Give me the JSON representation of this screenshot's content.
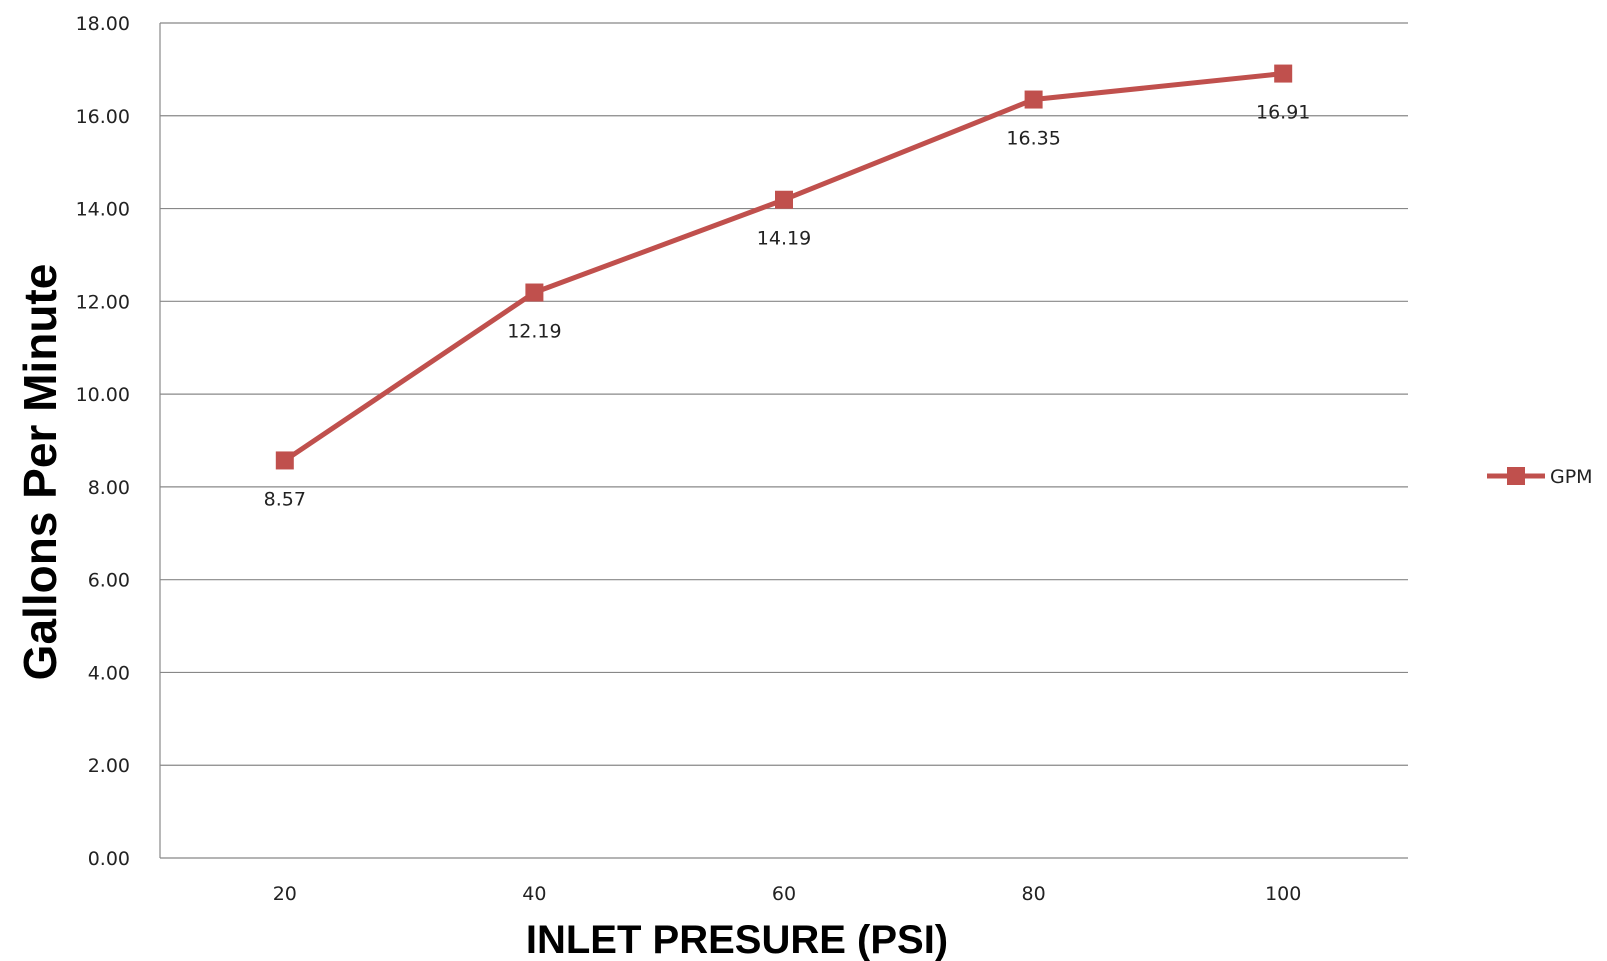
{
  "chart_data": {
    "type": "line",
    "categories": [
      "20",
      "40",
      "60",
      "80",
      "100"
    ],
    "series": [
      {
        "name": "GPM",
        "values": [
          8.57,
          12.19,
          14.19,
          16.35,
          16.91
        ],
        "data_labels": [
          "8.57",
          "12.19",
          "14.19",
          "16.35",
          "16.91"
        ],
        "color": "#c0504d",
        "marker": "square"
      }
    ],
    "xlabel": "INLET PRESURE (PSI)",
    "ylabel": "Gallons Per Minute",
    "ylim": [
      0,
      18
    ],
    "y_ticks": [
      "0.00",
      "2.00",
      "4.00",
      "6.00",
      "8.00",
      "10.00",
      "12.00",
      "14.00",
      "16.00",
      "18.00"
    ],
    "grid": true,
    "legend": {
      "position": "right",
      "entries": [
        "GPM"
      ]
    }
  }
}
